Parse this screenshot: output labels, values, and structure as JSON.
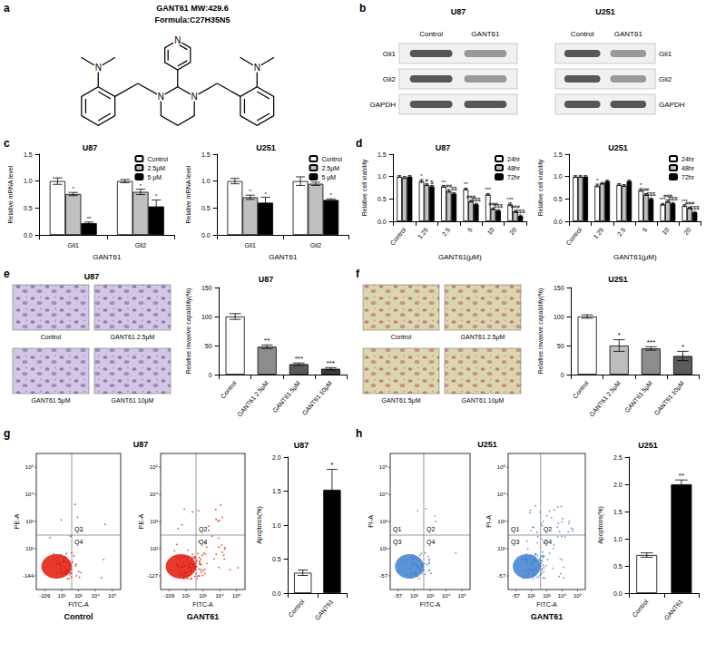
{
  "panel_labels": [
    "a",
    "b",
    "c",
    "d",
    "e",
    "f",
    "g",
    "h"
  ],
  "structure": {
    "title": "GANT61 MW:429.6",
    "formula": "Formula:C27H35N5",
    "atom_label": "N"
  },
  "blots": [
    {
      "title": "U87",
      "columns": [
        "Control",
        "GANT61"
      ],
      "rows": [
        "Gli1",
        "Gli2",
        "GAPDH"
      ]
    },
    {
      "title": "U251",
      "columns": [
        "Control",
        "GANT61"
      ],
      "rows": [
        "Gli1",
        "Gli2",
        "GAPDH"
      ]
    }
  ],
  "invasion_images": [
    {
      "title": "U87",
      "captions": [
        "Control",
        "GANT61 2.5μM",
        "GANT61 5μM",
        "GANT61 10μM"
      ]
    },
    {
      "captions": [
        "Control",
        "GANT61 2.5μM",
        "GANT61 5μM",
        "GANT61 10μM"
      ]
    }
  ],
  "flow": [
    {
      "title": "U87",
      "color": "#e3170a",
      "plots": [
        {
          "x_label": "FITC-A",
          "y_label": "PE-A",
          "x_ticks": [
            "-109",
            "10²",
            "10³",
            "10⁴",
            "10⁵"
          ],
          "y_ticks": [
            "-144",
            "10²",
            "10³",
            "10⁴",
            "10⁵"
          ],
          "quadrants": [
            "Q2",
            "Q4"
          ],
          "caption": "Control"
        },
        {
          "x_label": "FITC-A",
          "y_label": "PE-A",
          "x_ticks": [
            "-109",
            "10²",
            "10³",
            "10⁴",
            "10⁵"
          ],
          "y_ticks": [
            "-127",
            "10²",
            "10³",
            "10⁴",
            "10⁵"
          ],
          "quadrants": [
            "Q2",
            "Q4"
          ],
          "caption": "GANT61"
        }
      ]
    },
    {
      "title": "U251",
      "color": "#3f7fcf",
      "plots": [
        {
          "x_label": "FITC-A",
          "y_label": "PI-A",
          "x_ticks": [
            "-57",
            "10²",
            "10³",
            "10⁴",
            "10⁵"
          ],
          "y_ticks": [
            "-57",
            "10²",
            "10³",
            "10⁴",
            "10⁵"
          ],
          "quadrants": [
            "Q1",
            "Q2",
            "Q3",
            "Q4"
          ]
        },
        {
          "x_label": "FITC-A",
          "y_label": "PI-A",
          "x_ticks": [
            "-57",
            "10²",
            "10³",
            "10⁴",
            "10⁵"
          ],
          "y_ticks": [
            "-57",
            "10²",
            "10³",
            "10⁴",
            "10⁵"
          ],
          "quadrants": [
            "Q1",
            "Q2",
            "Q3",
            "Q4"
          ],
          "caption": "GANT61"
        }
      ]
    }
  ],
  "chart_data": [
    {
      "type": "bar",
      "title": "U87",
      "x_label": "GANT61",
      "y_label": "Relative mRNA level",
      "categories": [
        "Gli1",
        "Gli2"
      ],
      "series": [
        {
          "name": "Control",
          "color": "#ffffff",
          "values": [
            1.0,
            1.0
          ],
          "errors": [
            0.06,
            0.03
          ],
          "annotations": [
            null,
            null
          ]
        },
        {
          "name": "2.5μM",
          "color": "#c0c0c0",
          "values": [
            0.76,
            0.8
          ],
          "errors": [
            0.03,
            0.05
          ],
          "annotations": [
            "*",
            "*"
          ]
        },
        {
          "name": "5 μM",
          "color": "#000000",
          "values": [
            0.22,
            0.53
          ],
          "errors": [
            0.02,
            0.12
          ],
          "annotations": [
            "**",
            "*"
          ]
        }
      ],
      "ylim": [
        0,
        1.5
      ],
      "yticks": [
        {
          "value": 0,
          "label": "0.0"
        },
        {
          "value": 0.5,
          "label": "0.5"
        },
        {
          "value": 1,
          "label": "1.0"
        },
        {
          "value": 1.5,
          "label": "1.5"
        }
      ],
      "grid": false,
      "legend": "upper right"
    },
    {
      "type": "bar",
      "title": "U251",
      "x_label": "GANT61",
      "y_label": "Relative mRNA level",
      "categories": [
        "Gli1",
        "Gli2"
      ],
      "series": [
        {
          "name": "Control",
          "color": "#ffffff",
          "values": [
            1.0,
            1.0
          ],
          "errors": [
            0.05,
            0.08
          ],
          "annotations": [
            null,
            null
          ]
        },
        {
          "name": "2.5μM",
          "color": "#c0c0c0",
          "values": [
            0.7,
            0.95
          ],
          "errors": [
            0.04,
            0.03
          ],
          "annotations": [
            "*",
            null
          ]
        },
        {
          "name": "5 μM",
          "color": "#000000",
          "values": [
            0.6,
            0.65
          ],
          "errors": [
            0.1,
            0.02
          ],
          "annotations": [
            "*",
            "*"
          ]
        }
      ],
      "ylim": [
        0,
        1.5
      ],
      "yticks": [
        {
          "value": 0,
          "label": "0.0"
        },
        {
          "value": 0.5,
          "label": "0.5"
        },
        {
          "value": 1,
          "label": "1.0"
        },
        {
          "value": 1.5,
          "label": "1.5"
        }
      ],
      "grid": false,
      "legend": "upper right"
    },
    {
      "type": "bar",
      "title": "U87",
      "x_label": "GANT61(μM)",
      "y_label": "Relative cell viability",
      "categories": [
        "Control",
        "1.25",
        "2.5",
        "5",
        "10",
        "20"
      ],
      "series": [
        {
          "name": "24hr",
          "color": "#ffffff",
          "values": [
            1.0,
            0.9,
            0.78,
            0.72,
            0.6,
            0.38
          ],
          "errors": [
            0.02,
            0.03,
            0.02,
            0.02,
            0.02,
            0.03
          ],
          "annotations": [
            null,
            "*",
            "**",
            "**",
            "***",
            "***"
          ]
        },
        {
          "name": "48hr",
          "color": "#c0c0c0",
          "values": [
            0.98,
            0.82,
            0.68,
            0.45,
            0.28,
            0.22
          ],
          "errors": [
            0.02,
            0.02,
            0.03,
            0.02,
            0.02,
            0.02
          ],
          "annotations": [
            null,
            "#",
            "##",
            "###",
            "###",
            "###"
          ]
        },
        {
          "name": "72hr",
          "color": "#000000",
          "values": [
            1.0,
            0.78,
            0.62,
            0.38,
            0.24,
            0.12
          ],
          "errors": [
            0.02,
            0.02,
            0.02,
            0.02,
            0.02,
            0.02
          ],
          "annotations": [
            null,
            "$",
            "$$",
            "$$$",
            "$$$",
            "$$$"
          ]
        }
      ],
      "ylim": [
        0,
        1.5
      ],
      "yticks": [
        {
          "value": 0,
          "label": "0.0"
        },
        {
          "value": 0.5,
          "label": "0.5"
        },
        {
          "value": 1,
          "label": "1.0"
        },
        {
          "value": 1.5,
          "label": "1.5"
        }
      ],
      "grid": false,
      "legend": "upper right"
    },
    {
      "type": "bar",
      "title": "U251",
      "x_label": "GANT61(μM)",
      "y_label": "Relative cell viability",
      "categories": [
        "Control",
        "1.25",
        "2.5",
        "5",
        "10",
        "20"
      ],
      "series": [
        {
          "name": "24hr",
          "color": "#ffffff",
          "values": [
            1.0,
            0.8,
            0.82,
            0.7,
            0.38,
            0.35
          ],
          "errors": [
            0.02,
            0.03,
            0.02,
            0.03,
            0.02,
            0.02
          ],
          "annotations": [
            null,
            "*",
            null,
            "*",
            "***",
            "***"
          ]
        },
        {
          "name": "48hr",
          "color": "#c0c0c0",
          "values": [
            1.0,
            0.85,
            0.8,
            0.6,
            0.45,
            0.3
          ],
          "errors": [
            0.02,
            0.02,
            0.02,
            0.02,
            0.03,
            0.02
          ],
          "annotations": [
            null,
            null,
            null,
            "##",
            "###",
            "###"
          ]
        },
        {
          "name": "72hr",
          "color": "#000000",
          "values": [
            1.0,
            0.9,
            0.9,
            0.5,
            0.4,
            0.2
          ],
          "errors": [
            0.02,
            0.02,
            0.02,
            0.02,
            0.02,
            0.02
          ],
          "annotations": [
            null,
            null,
            null,
            "$$$",
            "$$$",
            "$$$"
          ]
        }
      ],
      "ylim": [
        0,
        1.5
      ],
      "yticks": [
        {
          "value": 0,
          "label": "0.0"
        },
        {
          "value": 0.5,
          "label": "0.5"
        },
        {
          "value": 1,
          "label": "1.0"
        },
        {
          "value": 1.5,
          "label": "1.5"
        }
      ],
      "grid": false,
      "legend": "upper right"
    },
    {
      "type": "bar",
      "title": "U87",
      "y_label": "Relative invasive capability(%)",
      "categories": [
        "Control",
        "GANT61 2.5μM",
        "GANT61 5μM",
        "GANT61 10μM"
      ],
      "values": [
        100,
        48,
        18,
        10
      ],
      "errors": [
        5,
        3,
        2,
        2
      ],
      "annotations": [
        null,
        "**",
        "***",
        "***"
      ],
      "colors": [
        "#ffffff",
        "#8c8c8c",
        "#5a5a5a",
        "#3c3c3c"
      ],
      "ylim": [
        0,
        150
      ],
      "yticks": [
        0,
        50,
        100,
        150
      ],
      "grid": false
    },
    {
      "type": "bar",
      "title": "U251",
      "y_label": "Relative invasive capability(%)",
      "categories": [
        "Control",
        "GANT61 2.5μM",
        "GANT61 5μM",
        "GANT61 10μM"
      ],
      "values": [
        100,
        50,
        45,
        32
      ],
      "errors": [
        3,
        10,
        3,
        8
      ],
      "annotations": [
        null,
        "*",
        "***",
        "*"
      ],
      "colors": [
        "#ffffff",
        "#bdbdbd",
        "#8c8c8c",
        "#5a5a5a"
      ],
      "ylim": [
        0,
        150
      ],
      "yticks": [
        0,
        50,
        100,
        150
      ],
      "grid": false
    },
    {
      "type": "bar",
      "title": "U87",
      "y_label": "Apoptosis(%)",
      "categories": [
        "Control",
        "GANT61"
      ],
      "values": [
        0.3,
        1.52
      ],
      "errors": [
        0.04,
        0.3
      ],
      "annotations": [
        null,
        "*"
      ],
      "colors": [
        "#ffffff",
        "#000000"
      ],
      "ylim": [
        0,
        2.0
      ],
      "yticks": [
        {
          "value": 0,
          "label": "0.0"
        },
        {
          "value": 0.5,
          "label": "0.5"
        },
        {
          "value": 1,
          "label": "1.0"
        },
        {
          "value": 1.5,
          "label": "1.5"
        },
        {
          "value": 2,
          "label": "2.0"
        }
      ],
      "grid": false
    },
    {
      "type": "bar",
      "title": "U251",
      "y_label": "Apoptosis(%)",
      "categories": [
        "Control",
        "GANT61"
      ],
      "values": [
        0.7,
        2.0
      ],
      "errors": [
        0.04,
        0.08
      ],
      "annotations": [
        null,
        "**"
      ],
      "colors": [
        "#ffffff",
        "#000000"
      ],
      "ylim": [
        0,
        2.5
      ],
      "yticks": [
        {
          "value": 0,
          "label": "0.0"
        },
        {
          "value": 0.5,
          "label": "0.5"
        },
        {
          "value": 1,
          "label": "1.0"
        },
        {
          "value": 1.5,
          "label": "1.5"
        },
        {
          "value": 2,
          "label": "2.0"
        },
        {
          "value": 2.5,
          "label": "2.5"
        }
      ],
      "grid": false
    }
  ]
}
